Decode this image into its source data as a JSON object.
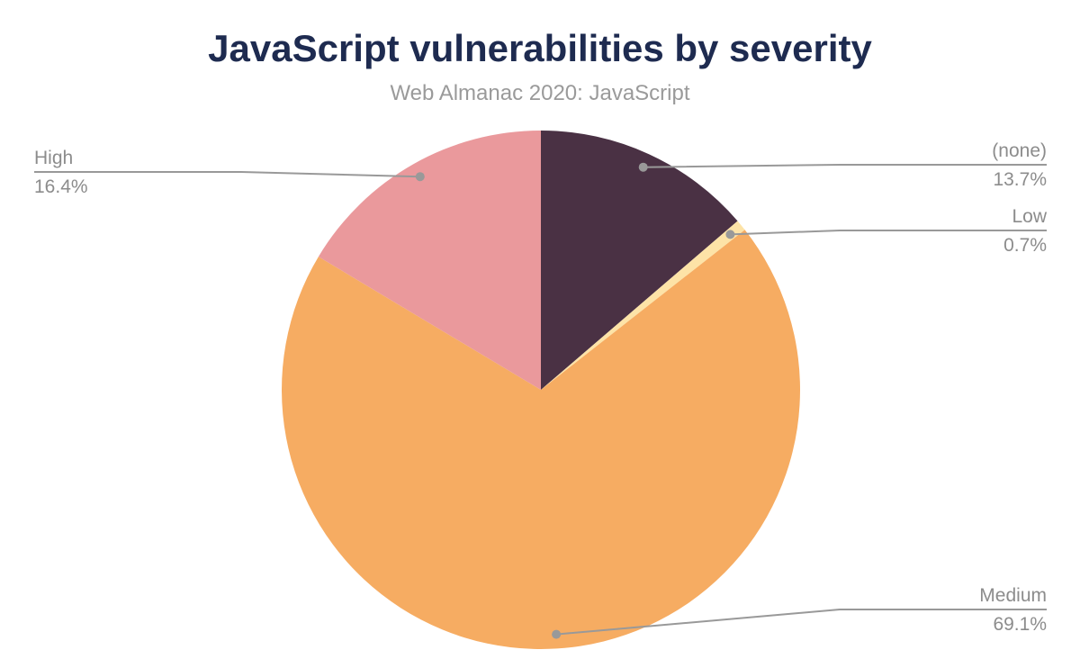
{
  "header": {
    "title": "JavaScript vulnerabilities by severity",
    "subtitle": "Web Almanac 2020: JavaScript",
    "title_color": "#1e2b50",
    "subtitle_color": "#9a9a9a"
  },
  "chart_data": {
    "type": "pie",
    "title": "JavaScript vulnerabilities by severity",
    "subtitle": "Web Almanac 2020: JavaScript",
    "start_angle_deg": 0,
    "direction": "clockwise",
    "legend": "none",
    "labels_style": "external-callouts-with-leader-lines",
    "callout_line_color": "#999999",
    "callout_dot_color": "#999999",
    "callout_text_color": "#8c8c8c",
    "slices": [
      {
        "label": "(none)",
        "value": 13.7,
        "value_label": "13.7%",
        "color": "#4a3144",
        "callout_side": "right"
      },
      {
        "label": "Low",
        "value": 0.7,
        "value_label": "0.7%",
        "color": "#fde3a7",
        "callout_side": "right"
      },
      {
        "label": "Medium",
        "value": 69.1,
        "value_label": "69.1%",
        "color": "#f6ac62",
        "callout_side": "right"
      },
      {
        "label": "High",
        "value": 16.4,
        "value_label": "16.4%",
        "color": "#ea999c",
        "callout_side": "left"
      }
    ]
  }
}
